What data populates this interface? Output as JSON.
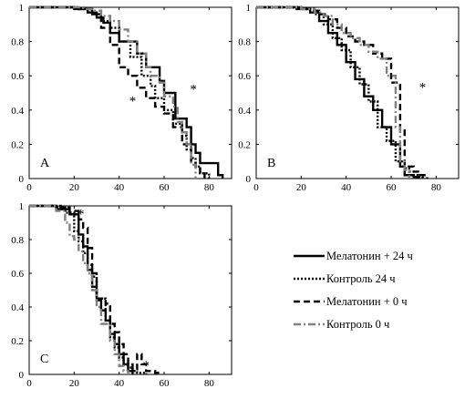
{
  "chart_data": [
    {
      "type": "line",
      "step": true,
      "panel_label": "A",
      "xlim": [
        0,
        90
      ],
      "ylim": [
        0,
        1
      ],
      "xticks": [
        "0",
        "20",
        "40",
        "60",
        "80"
      ],
      "yticks": [
        "0",
        "0.2",
        "0.4",
        "0.6",
        "0.8",
        "1"
      ],
      "annotations": [
        {
          "text": "*",
          "x": 46,
          "y": 0.46
        },
        {
          "text": "*",
          "x": 73,
          "y": 0.53
        }
      ],
      "series": [
        {
          "name": "Мелатонин + 24 ч",
          "style": "solid",
          "color": "#000000",
          "x": [
            0,
            20,
            26,
            30,
            33,
            36,
            40,
            48,
            52,
            58,
            60,
            65,
            70,
            72,
            74,
            76,
            80,
            84,
            86
          ],
          "y": [
            1,
            0.99,
            0.97,
            0.94,
            0.91,
            0.85,
            0.8,
            0.73,
            0.65,
            0.57,
            0.5,
            0.35,
            0.3,
            0.2,
            0.15,
            0.09,
            0.09,
            0.02,
            0
          ]
        },
        {
          "name": "Контроль 24 ч",
          "style": "dotted",
          "color": "#000000",
          "x": [
            0,
            22,
            28,
            32,
            36,
            40,
            45,
            50,
            54,
            56,
            60,
            64,
            68,
            70,
            72,
            74,
            76,
            80
          ],
          "y": [
            1,
            0.99,
            0.96,
            0.92,
            0.88,
            0.8,
            0.71,
            0.6,
            0.54,
            0.47,
            0.4,
            0.32,
            0.25,
            0.17,
            0.12,
            0.07,
            0.03,
            0
          ]
        },
        {
          "name": "Мелатонин + 0 ч",
          "style": "dashed",
          "color": "#000000",
          "x": [
            0,
            22,
            28,
            32,
            36,
            40,
            44,
            48,
            52,
            56,
            60,
            64,
            68,
            72,
            74,
            76,
            78
          ],
          "y": [
            1,
            0.99,
            0.96,
            0.88,
            0.78,
            0.65,
            0.6,
            0.53,
            0.47,
            0.42,
            0.38,
            0.3,
            0.2,
            0.1,
            0.07,
            0.03,
            0
          ]
        },
        {
          "name": "Контроль 0 ч",
          "style": "dashdot",
          "color": "#808080",
          "x": [
            0,
            24,
            28,
            32,
            36,
            40,
            44,
            48,
            52,
            54,
            58,
            60,
            64,
            66,
            68,
            70,
            72,
            74
          ],
          "y": [
            1,
            0.99,
            0.98,
            0.95,
            0.92,
            0.87,
            0.8,
            0.73,
            0.65,
            0.6,
            0.56,
            0.48,
            0.42,
            0.33,
            0.27,
            0.2,
            0.08,
            0
          ]
        }
      ]
    },
    {
      "type": "line",
      "step": true,
      "panel_label": "B",
      "xlim": [
        0,
        90
      ],
      "ylim": [
        0,
        1
      ],
      "xticks": [
        "0",
        "20",
        "40",
        "60",
        "80"
      ],
      "yticks": [
        "0",
        "0.2",
        "0.4",
        "0.6",
        "0.8",
        "1"
      ],
      "annotations": [
        {
          "text": "*",
          "x": 74,
          "y": 0.54
        }
      ],
      "series": [
        {
          "name": "Мелатонин + 24 ч",
          "style": "solid",
          "color": "#000000",
          "x": [
            0,
            18,
            24,
            28,
            32,
            36,
            40,
            44,
            48,
            52,
            56,
            60,
            64,
            66,
            68,
            70,
            72
          ],
          "y": [
            1,
            0.99,
            0.97,
            0.92,
            0.85,
            0.78,
            0.68,
            0.58,
            0.48,
            0.4,
            0.3,
            0.2,
            0.07,
            0.02,
            0.02,
            0.01,
            0
          ]
        },
        {
          "name": "Контроль 24 ч",
          "style": "dotted",
          "color": "#000000",
          "x": [
            0,
            20,
            26,
            30,
            34,
            38,
            42,
            46,
            50,
            54,
            58,
            62,
            66,
            68,
            70,
            72,
            74
          ],
          "y": [
            1,
            0.99,
            0.96,
            0.9,
            0.82,
            0.75,
            0.65,
            0.55,
            0.45,
            0.3,
            0.22,
            0.1,
            0.06,
            0.04,
            0.02,
            0.01,
            0
          ]
        },
        {
          "name": "Мелатонин + 0 ч",
          "style": "dashed",
          "color": "#000000",
          "x": [
            0,
            20,
            24,
            28,
            32,
            36,
            40,
            44,
            48,
            52,
            56,
            60,
            64,
            66,
            70,
            72,
            76
          ],
          "y": [
            1,
            0.99,
            0.98,
            0.96,
            0.93,
            0.88,
            0.83,
            0.8,
            0.78,
            0.73,
            0.7,
            0.56,
            0.28,
            0.07,
            0.04,
            0.02,
            0
          ]
        },
        {
          "name": "Контроль 0 ч",
          "style": "dashdot",
          "color": "#808080",
          "x": [
            0,
            20,
            26,
            30,
            34,
            38,
            42,
            46,
            50,
            54,
            58,
            62,
            64,
            66,
            68
          ],
          "y": [
            1,
            0.99,
            0.97,
            0.95,
            0.9,
            0.85,
            0.82,
            0.78,
            0.74,
            0.7,
            0.6,
            0.3,
            0.1,
            0.05,
            0
          ]
        }
      ]
    },
    {
      "type": "line",
      "step": true,
      "panel_label": "C",
      "xlim": [
        0,
        90
      ],
      "ylim": [
        0,
        1
      ],
      "xticks": [
        "0",
        "20",
        "40",
        "60",
        "80"
      ],
      "yticks": [
        "0",
        "0.2",
        "0.4",
        "0.6",
        "0.8",
        "1"
      ],
      "annotations": [
        {
          "text": "*",
          "x": 23,
          "y": 0.96
        },
        {
          "text": "*",
          "x": 52,
          "y": 0.06
        }
      ],
      "series": [
        {
          "name": "Мелатонин + 24 ч",
          "style": "solid",
          "color": "#000000",
          "x": [
            0,
            12,
            18,
            22,
            24,
            26,
            28,
            30,
            32,
            34,
            36,
            38,
            40,
            42,
            44,
            46
          ],
          "y": [
            1,
            0.98,
            0.95,
            0.83,
            0.76,
            0.62,
            0.52,
            0.44,
            0.38,
            0.32,
            0.24,
            0.18,
            0.12,
            0.06,
            0.02,
            0
          ]
        },
        {
          "name": "Контроль 24 ч",
          "style": "dotted",
          "color": "#000000",
          "x": [
            0,
            12,
            16,
            20,
            22,
            24,
            26,
            28,
            30,
            34,
            36,
            38,
            40,
            42,
            44,
            46,
            48,
            52
          ],
          "y": [
            1,
            0.99,
            0.96,
            0.85,
            0.79,
            0.72,
            0.65,
            0.58,
            0.45,
            0.32,
            0.22,
            0.16,
            0.1,
            0.06,
            0.04,
            0.02,
            0.01,
            0
          ]
        },
        {
          "name": "Мелатонин + 0 ч",
          "style": "dashed",
          "color": "#000000",
          "x": [
            0,
            14,
            18,
            22,
            24,
            26,
            28,
            30,
            34,
            36,
            38,
            40,
            42,
            44,
            46,
            48,
            50,
            52,
            56,
            58
          ],
          "y": [
            1,
            0.99,
            0.97,
            0.92,
            0.87,
            0.75,
            0.6,
            0.45,
            0.42,
            0.3,
            0.25,
            0.18,
            0.12,
            0.06,
            0.03,
            0.12,
            0.06,
            0.02,
            0.01,
            0
          ]
        },
        {
          "name": "Контроль 0 ч",
          "style": "dashdot",
          "color": "#808080",
          "x": [
            0,
            12,
            16,
            18,
            20,
            22,
            24,
            26,
            28,
            30,
            32,
            36,
            38,
            40,
            42,
            44
          ],
          "y": [
            1,
            0.97,
            0.9,
            0.82,
            0.8,
            0.73,
            0.66,
            0.6,
            0.5,
            0.4,
            0.3,
            0.2,
            0.12,
            0.05,
            0.02,
            0
          ]
        }
      ]
    }
  ],
  "legend": {
    "items": [
      {
        "label": "Мелатонин + 24 ч",
        "style": "solid",
        "color": "#000000"
      },
      {
        "label": "Контроль 24 ч",
        "style": "dotted",
        "color": "#000000"
      },
      {
        "label": "Мелатонин + 0 ч",
        "style": "dashed",
        "color": "#000000"
      },
      {
        "label": "Контроль 0 ч",
        "style": "dashdot",
        "color": "#808080"
      }
    ]
  }
}
